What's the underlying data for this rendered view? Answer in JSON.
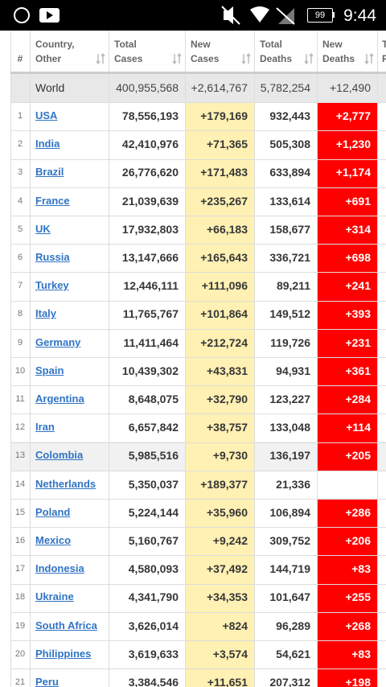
{
  "status_bar": {
    "battery": "99",
    "time": "9:44"
  },
  "table": {
    "headers": [
      [
        "#"
      ],
      [
        "Country,",
        "Other"
      ],
      [
        "Total",
        "Cases"
      ],
      [
        "New",
        "Cases"
      ],
      [
        "Total",
        "Deaths"
      ],
      [
        "New",
        "Deaths"
      ],
      [
        "T",
        "F"
      ]
    ],
    "world": [
      "World",
      "400,955,568",
      "+2,614,767",
      "5,782,254",
      "+12,490"
    ],
    "rows": [
      [
        "1",
        "USA",
        "78,556,193",
        "+179,169",
        "932,443",
        "+2,777"
      ],
      [
        "2",
        "India",
        "42,410,976",
        "+71,365",
        "505,308",
        "+1,230"
      ],
      [
        "3",
        "Brazil",
        "26,776,620",
        "+171,483",
        "633,894",
        "+1,174"
      ],
      [
        "4",
        "France",
        "21,039,639",
        "+235,267",
        "133,614",
        "+691"
      ],
      [
        "5",
        "UK",
        "17,932,803",
        "+66,183",
        "158,677",
        "+314"
      ],
      [
        "6",
        "Russia",
        "13,147,666",
        "+165,643",
        "336,721",
        "+698"
      ],
      [
        "7",
        "Turkey",
        "12,446,111",
        "+111,096",
        "89,211",
        "+241"
      ],
      [
        "8",
        "Italy",
        "11,765,767",
        "+101,864",
        "149,512",
        "+393"
      ],
      [
        "9",
        "Germany",
        "11,411,464",
        "+212,724",
        "119,726",
        "+231"
      ],
      [
        "10",
        "Spain",
        "10,439,302",
        "+43,831",
        "94,931",
        "+361"
      ],
      [
        "11",
        "Argentina",
        "8,648,075",
        "+32,790",
        "123,227",
        "+284"
      ],
      [
        "12",
        "Iran",
        "6,657,842",
        "+38,757",
        "133,048",
        "+114"
      ],
      [
        "13",
        "Colombia",
        "5,985,516",
        "+9,730",
        "136,197",
        "+205"
      ],
      [
        "14",
        "Netherlands",
        "5,350,037",
        "+189,377",
        "21,336",
        null
      ],
      [
        "15",
        "Poland",
        "5,224,144",
        "+35,960",
        "106,894",
        "+286"
      ],
      [
        "16",
        "Mexico",
        "5,160,767",
        "+9,242",
        "309,752",
        "+206"
      ],
      [
        "17",
        "Indonesia",
        "4,580,093",
        "+37,492",
        "144,719",
        "+83"
      ],
      [
        "18",
        "Ukraine",
        "4,341,790",
        "+34,353",
        "101,647",
        "+255"
      ],
      [
        "19",
        "South Africa",
        "3,626,014",
        "+824",
        "96,289",
        "+268"
      ],
      [
        "20",
        "Philippines",
        "3,619,633",
        "+3,574",
        "54,621",
        "+83"
      ],
      [
        "21",
        "Peru",
        "3,384,546",
        "+11,651",
        "207,312",
        "+198"
      ]
    ]
  }
}
